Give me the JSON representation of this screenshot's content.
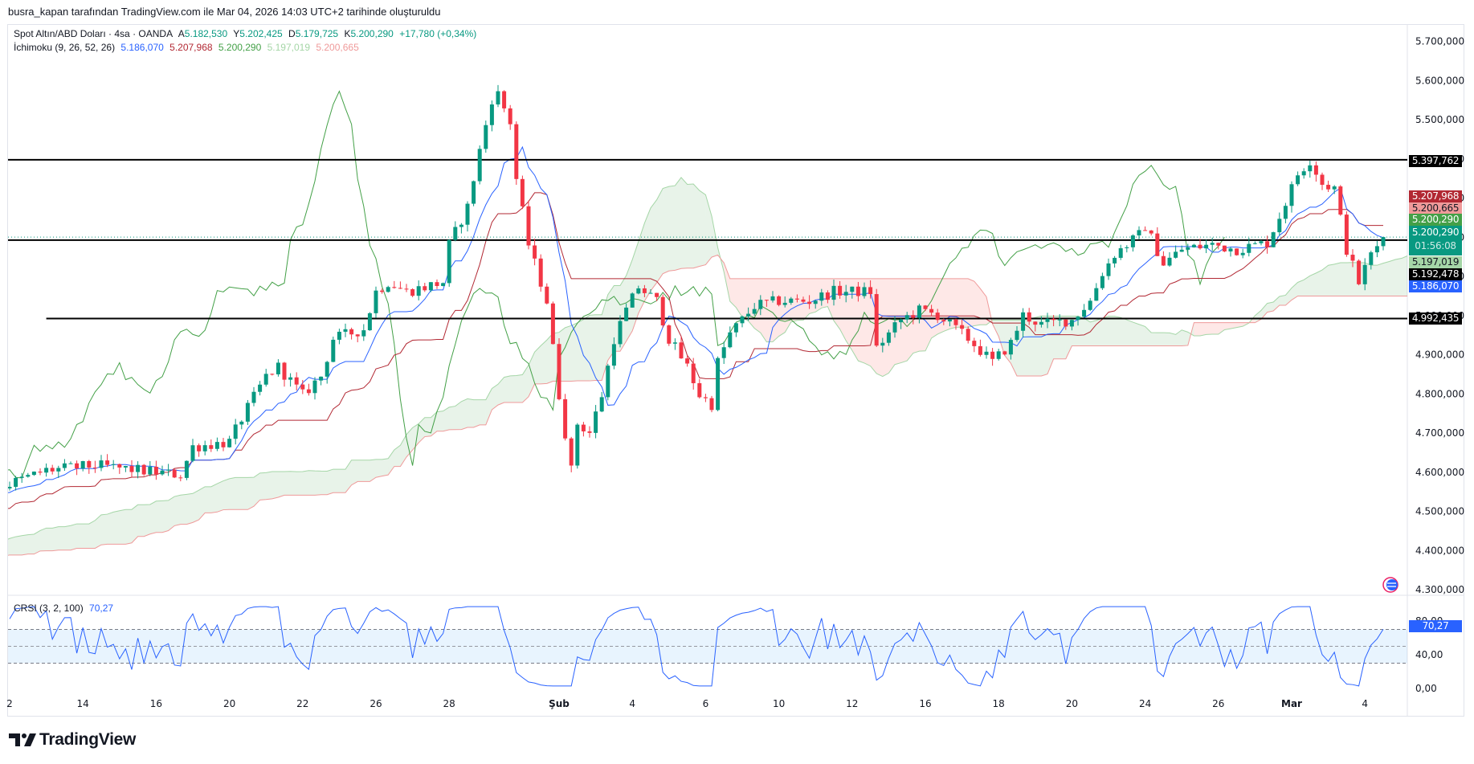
{
  "credit": "busra_kapan tarafından TradingView.com ile Mar 04, 2026 14:03 UTC+2 tarihinde oluşturuldu",
  "legend": {
    "symbol": "Spot Altın/ABD Doları · 4sa · OANDA",
    "o_label": "A",
    "o": "5.182,530",
    "h_label": "Y",
    "h": "5.202,425",
    "l_label": "D",
    "l": "5.179,725",
    "c_label": "K",
    "c": "5.200,290",
    "change": "+17,780 (+0,34%)",
    "ichimoku_name": "İchimoku (9, 26, 52, 26)",
    "ichimoku_values": [
      "5.186,070",
      "5.207,968",
      "5.200,290",
      "5.197,019",
      "5.200,665"
    ]
  },
  "crsi": {
    "name": "CRSI (3, 2, 100)",
    "value": "70,27",
    "axis": [
      "80,00",
      "40,00",
      "0,00"
    ]
  },
  "price_axis": [
    "5.700,000",
    "5.600,000",
    "5.500,000",
    "5.400,000",
    "5.300,000",
    "5.200,000",
    "5.100,000",
    "5.000,000",
    "4.900,000",
    "4.800,000",
    "4.700,000",
    "4.600,000",
    "4.500,000",
    "4.400,000",
    "4.300,000"
  ],
  "time_axis": [
    {
      "label": "2",
      "bar": 0
    },
    {
      "label": "14",
      "bar": 12
    },
    {
      "label": "16",
      "bar": 24
    },
    {
      "label": "20",
      "bar": 36
    },
    {
      "label": "22",
      "bar": 48
    },
    {
      "label": "26",
      "bar": 60
    },
    {
      "label": "28",
      "bar": 72
    },
    {
      "label": "Şub",
      "bar": 90
    },
    {
      "label": "4",
      "bar": 102
    },
    {
      "label": "6",
      "bar": 114
    },
    {
      "label": "10",
      "bar": 126
    },
    {
      "label": "12",
      "bar": 138
    },
    {
      "label": "16",
      "bar": 150
    },
    {
      "label": "18",
      "bar": 162
    },
    {
      "label": "20",
      "bar": 174
    },
    {
      "label": "24",
      "bar": 186
    },
    {
      "label": "26",
      "bar": 198
    },
    {
      "label": "Mar",
      "bar": 210
    },
    {
      "label": "4",
      "bar": 222
    }
  ],
  "price_labels": [
    {
      "text": "5.397,762",
      "value": 5.397762,
      "bg": "#000000",
      "fg": "#ffffff"
    },
    {
      "text": "5.207,968",
      "value": 5.207968,
      "bg": "#b22833",
      "fg": "#ffffff"
    },
    {
      "text": "5.200,665",
      "value": 5.200665,
      "bg": "#ef9a9a",
      "fg": "#131722"
    },
    {
      "text": "5.200,290",
      "value": 5.20029,
      "bg": "#43a047",
      "fg": "#ffffff"
    },
    {
      "text": "5.200,290",
      "sub": "01:56:08",
      "value": 5.20029,
      "bg": "#089981",
      "fg": "#ffffff"
    },
    {
      "text": "5.197,019",
      "value": 5.197019,
      "bg": "#a5d6a7",
      "fg": "#131722"
    },
    {
      "text": "5.192,478",
      "value": 5.192478,
      "bg": "#000000",
      "fg": "#ffffff"
    },
    {
      "text": "5.186,070",
      "value": 5.18607,
      "bg": "#2962ff",
      "fg": "#ffffff"
    },
    {
      "text": "4.992,435",
      "value": 4.992435,
      "bg": "#000000",
      "fg": "#ffffff"
    }
  ],
  "hlines": [
    {
      "value": 5.397762,
      "from_bar": -1
    },
    {
      "value": 5.192478,
      "from_bar": -1
    },
    {
      "value": 4.992435,
      "from_bar": 6
    }
  ],
  "colors": {
    "up": "#089981",
    "down": "#f23645",
    "tenkan": "#2962ff",
    "kijun": "#b22833",
    "chikou": "#43a047",
    "spanA": "#a5d6a7",
    "spanB": "#ef9a9a",
    "crsi": "#2962ff"
  },
  "chart_data": {
    "type": "candlestick",
    "title": "Spot Altın/ABD Doları · 4sa · OANDA",
    "unit": "USD (thousands, 5.2 = 5.200,000)",
    "ylim": [
      4.3,
      5.7
    ],
    "close_keypoints": [
      [
        -60,
        4.3
      ],
      [
        -30,
        4.45
      ],
      [
        0,
        4.57
      ],
      [
        6,
        4.605
      ],
      [
        14,
        4.617
      ],
      [
        21,
        4.605
      ],
      [
        28,
        4.593
      ],
      [
        30,
        4.665
      ],
      [
        36,
        4.677
      ],
      [
        38,
        4.737
      ],
      [
        42,
        4.845
      ],
      [
        44,
        4.869
      ],
      [
        48,
        4.797
      ],
      [
        51,
        4.845
      ],
      [
        53,
        4.941
      ],
      [
        58,
        4.965
      ],
      [
        60,
        5.061
      ],
      [
        62,
        5.085
      ],
      [
        65,
        5.061
      ],
      [
        71,
        5.085
      ],
      [
        72,
        5.181
      ],
      [
        75,
        5.277
      ],
      [
        77,
        5.421
      ],
      [
        79,
        5.553
      ],
      [
        80,
        5.565
      ],
      [
        82,
        5.494
      ],
      [
        83,
        5.349
      ],
      [
        85,
        5.181
      ],
      [
        88,
        5.037
      ],
      [
        90,
        4.797
      ],
      [
        92,
        4.605
      ],
      [
        93,
        4.725
      ],
      [
        95,
        4.701
      ],
      [
        97,
        4.797
      ],
      [
        99,
        4.941
      ],
      [
        101,
        5.013
      ],
      [
        103,
        5.073
      ],
      [
        106,
        5.037
      ],
      [
        108,
        4.941
      ],
      [
        111,
        4.869
      ],
      [
        113,
        4.797
      ],
      [
        115,
        4.773
      ],
      [
        116,
        4.881
      ],
      [
        118,
        4.953
      ],
      [
        122,
        5.025
      ],
      [
        126,
        5.037
      ],
      [
        131,
        5.037
      ],
      [
        135,
        5.061
      ],
      [
        141,
        5.061
      ],
      [
        142,
        4.917
      ],
      [
        146,
        4.989
      ],
      [
        149,
        5.013
      ],
      [
        152,
        5.001
      ],
      [
        157,
        4.941
      ],
      [
        161,
        4.881
      ],
      [
        164,
        4.929
      ],
      [
        166,
        5.001
      ],
      [
        169,
        4.977
      ],
      [
        174,
        4.989
      ],
      [
        177,
        5.037
      ],
      [
        179,
        5.109
      ],
      [
        181,
        5.157
      ],
      [
        185,
        5.205
      ],
      [
        186,
        5.229
      ],
      [
        189,
        5.133
      ],
      [
        192,
        5.169
      ],
      [
        197,
        5.181
      ],
      [
        201,
        5.169
      ],
      [
        206,
        5.186
      ],
      [
        208,
        5.253
      ],
      [
        211,
        5.361
      ],
      [
        213,
        5.397
      ],
      [
        215,
        5.337
      ],
      [
        217,
        5.325
      ],
      [
        219,
        5.169
      ],
      [
        221,
        5.085
      ],
      [
        223,
        5.157
      ],
      [
        225,
        5.2003
      ]
    ],
    "last_bar": 225,
    "ichimoku": {
      "tenkan": 9,
      "kijun": 26,
      "spanB": 52,
      "displacement": 26
    },
    "crsi_params": {
      "rsi": 3,
      "streak": 2,
      "rank": 100
    },
    "crsi_levels": [
      70,
      50,
      30
    ]
  }
}
